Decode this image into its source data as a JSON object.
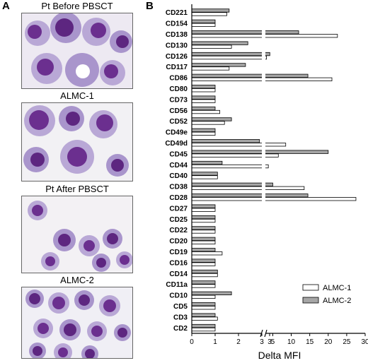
{
  "panel_a": {
    "letter": "A",
    "captions": [
      "Pt Before PBSCT",
      "ALMC-1",
      "Pt After PBSCT",
      "ALMC-2"
    ]
  },
  "panel_b": {
    "letter": "B"
  },
  "colors": {
    "almc1_fill": "#ffffff",
    "almc2_fill": "#a6a6a6",
    "cell_cytoplasm": "#b9a8d6",
    "cell_nucleus": "#6b2f8f",
    "background": "#eef0f3"
  },
  "chart_data": {
    "type": "bar",
    "orientation": "horizontal",
    "xlabel": "Delta MFI",
    "ylabel": "",
    "axis_break": {
      "low_segment": [
        0,
        3
      ],
      "high_segment": [
        3,
        30
      ]
    },
    "xticks": [
      "0",
      "1",
      "2",
      "3",
      "3",
      "5",
      "10",
      "15",
      "20",
      "25",
      "30"
    ],
    "categories": [
      "CD221",
      "CD154",
      "CD138",
      "CD130",
      "CD126",
      "CD117",
      "CD86",
      "CD80",
      "CD73",
      "CD56",
      "CD52",
      "CD49e",
      "CD49d",
      "CD45",
      "CD44",
      "CD40",
      "CD38",
      "CD28",
      "CD27",
      "CD25",
      "CD22",
      "CD20",
      "CD19",
      "CD16",
      "CD14",
      "CD11a",
      "CD10",
      "CD5",
      "CD3",
      "CD2"
    ],
    "series": [
      {
        "name": "ALMC-1",
        "values": [
          1.5,
          1.0,
          22.5,
          1.7,
          3.3,
          1.6,
          21.0,
          1.0,
          1.0,
          1.2,
          1.4,
          1.0,
          8.5,
          6.5,
          3.8,
          1.1,
          13.5,
          27.5,
          1.0,
          1.0,
          1.0,
          1.0,
          1.3,
          1.0,
          1.1,
          1.0,
          1.0,
          1.0,
          1.1,
          1.0
        ]
      },
      {
        "name": "ALMC-2",
        "values": [
          1.6,
          1.0,
          12.0,
          2.4,
          4.2,
          2.3,
          14.5,
          1.0,
          1.0,
          1.0,
          1.7,
          1.0,
          2.9,
          20.0,
          1.3,
          1.1,
          5.0,
          14.5,
          1.0,
          1.0,
          1.0,
          1.0,
          1.0,
          1.0,
          1.1,
          1.0,
          1.7,
          1.0,
          1.0,
          1.0
        ]
      }
    ],
    "legend": {
      "entries": [
        "ALMC-1",
        "ALMC-2"
      ],
      "position": "bottom-right"
    },
    "grid": false
  }
}
